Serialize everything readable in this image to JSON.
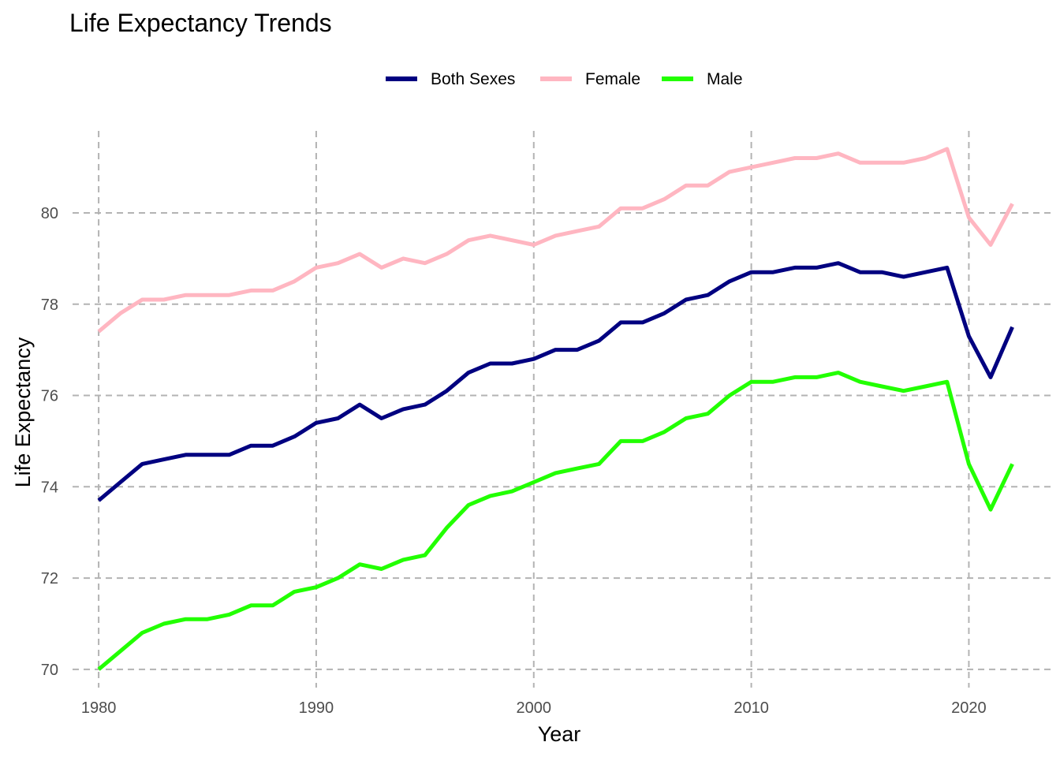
{
  "chart_data": {
    "type": "line",
    "title": "Life Expectancy Trends",
    "xlabel": "Year",
    "ylabel": "Life Expectancy",
    "xlim": [
      1978.8,
      2023.9
    ],
    "ylim": [
      69.6,
      81.9
    ],
    "x_ticks": [
      1980,
      1990,
      2000,
      2010,
      2020
    ],
    "y_ticks": [
      70,
      72,
      74,
      76,
      78,
      80
    ],
    "grid": true,
    "grid_style": "dashed",
    "legend_position": "top",
    "x": [
      1980,
      1981,
      1982,
      1983,
      1984,
      1985,
      1986,
      1987,
      1988,
      1989,
      1990,
      1991,
      1992,
      1993,
      1994,
      1995,
      1996,
      1997,
      1998,
      1999,
      2000,
      2001,
      2002,
      2003,
      2004,
      2005,
      2006,
      2007,
      2008,
      2009,
      2010,
      2011,
      2012,
      2013,
      2014,
      2015,
      2016,
      2017,
      2018,
      2019,
      2020,
      2021,
      2022
    ],
    "series": [
      {
        "name": "Both Sexes",
        "color": "#000080",
        "values": [
          73.7,
          74.1,
          74.5,
          74.6,
          74.7,
          74.7,
          74.7,
          74.9,
          74.9,
          75.1,
          75.4,
          75.5,
          75.8,
          75.5,
          75.7,
          75.8,
          76.1,
          76.5,
          76.7,
          76.7,
          76.8,
          77.0,
          77.0,
          77.2,
          77.6,
          77.6,
          77.8,
          78.1,
          78.2,
          78.5,
          78.7,
          78.7,
          78.8,
          78.8,
          78.9,
          78.7,
          78.7,
          78.6,
          78.7,
          78.8,
          77.3,
          76.4,
          77.5
        ]
      },
      {
        "name": "Female",
        "color": "#FFB6C1",
        "values": [
          77.4,
          77.8,
          78.1,
          78.1,
          78.2,
          78.2,
          78.2,
          78.3,
          78.3,
          78.5,
          78.8,
          78.9,
          79.1,
          78.8,
          79.0,
          78.9,
          79.1,
          79.4,
          79.5,
          79.4,
          79.3,
          79.5,
          79.6,
          79.7,
          80.1,
          80.1,
          80.3,
          80.6,
          80.6,
          80.9,
          81.0,
          81.1,
          81.2,
          81.2,
          81.3,
          81.1,
          81.1,
          81.1,
          81.2,
          81.4,
          79.9,
          79.3,
          80.2
        ]
      },
      {
        "name": "Male",
        "color": "#22FF00",
        "values": [
          70.0,
          70.4,
          70.8,
          71.0,
          71.1,
          71.1,
          71.2,
          71.4,
          71.4,
          71.7,
          71.8,
          72.0,
          72.3,
          72.2,
          72.4,
          72.5,
          73.1,
          73.6,
          73.8,
          73.9,
          74.1,
          74.3,
          74.4,
          74.5,
          75.0,
          75.0,
          75.2,
          75.5,
          75.6,
          76.0,
          76.3,
          76.3,
          76.4,
          76.4,
          76.5,
          76.3,
          76.2,
          76.1,
          76.2,
          76.3,
          74.5,
          73.5,
          74.5
        ]
      }
    ]
  }
}
